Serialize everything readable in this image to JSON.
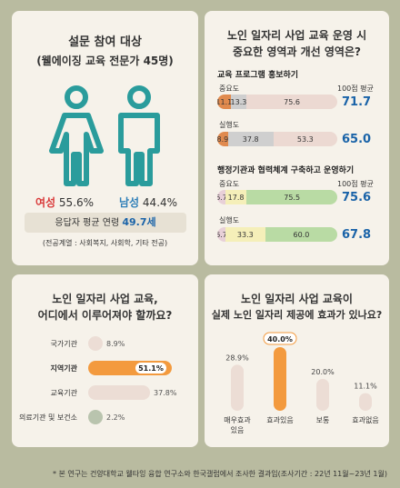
{
  "survey": {
    "title": "설문 참여 대상",
    "subtitle": "(웰에이징 교육 전문가 45명)",
    "female_label": "여성",
    "female_pct": "55.6%",
    "male_label": "남성",
    "male_pct": "44.4%",
    "age_label": "응답자 평균 연령",
    "age_value": "49.7세",
    "majors": "(전공계열 : 사회복지, 사회학, 기타 전공)",
    "colors": {
      "female": "#d93a3a",
      "male": "#2f7fb8",
      "icon": "#2a9c9c"
    }
  },
  "importance": {
    "title_line1": "노인 일자리 사업 교육 운영 시",
    "title_line2": "중요한 영역과 개선 영역은?",
    "avg_header": "100점 평균",
    "sections": [
      {
        "title": "교육 프로그램 홍보하기",
        "rows": [
          {
            "label": "중요도",
            "avg": "71.7"
          },
          {
            "label": "실행도",
            "avg": "65.0"
          }
        ]
      },
      {
        "title": "행정기관과 협력체계 구축하고 운영하기",
        "rows": [
          {
            "label": "중요도",
            "avg": "75.6"
          },
          {
            "label": "실행도",
            "avg": "67.8"
          }
        ]
      }
    ]
  },
  "place": {
    "title_line1": "노인 일자리 사업 교육,",
    "title_line2": "어디에서 이루어져야 할까요?"
  },
  "effect": {
    "title_line1": "노인 일자리 사업 교육이",
    "title_line2": "실제 노인 일자리 제공에 효과가 있나요?"
  },
  "footnote": "* 본 연구는 건양대학교 웰타잉 융합 연구소와 한국갤럽에서 조사한 결과임(조사기간 : 22년 11월~23년 1월)",
  "chart_data": [
    {
      "type": "bar",
      "orientation": "horizontal-stacked",
      "title": "노인 일자리 사업 교육 운영 시 중요한 영역과 개선 영역은?",
      "bars": [
        {
          "group": "교육 프로그램 홍보하기",
          "label": "중요도",
          "segments": [
            11.1,
            13.3,
            75.6
          ],
          "avg": 71.7
        },
        {
          "group": "교육 프로그램 홍보하기",
          "label": "실행도",
          "segments": [
            8.9,
            37.8,
            53.3
          ],
          "avg": 65.0
        },
        {
          "group": "행정기관과 협력체계 구축하고 운영하기",
          "label": "중요도",
          "segments": [
            6.7,
            17.8,
            75.5
          ],
          "avg": 75.6
        },
        {
          "group": "행정기관과 협력체계 구축하고 운영하기",
          "label": "실행도",
          "segments": [
            6.7,
            33.3,
            60.0
          ],
          "avg": 67.8
        }
      ],
      "segment_colors_group1": [
        "#e08a4e",
        "#cfcfcf",
        "#ecd9d2"
      ],
      "segment_colors_group2": [
        "#e8d0d8",
        "#f5efb9",
        "#b9dba4"
      ]
    },
    {
      "type": "bar",
      "orientation": "horizontal",
      "title": "노인 일자리 사업 교육, 어디에서 이루어져야 할까요?",
      "categories": [
        "국가기관",
        "지역기관",
        "교육기관",
        "의료기관 및 보건소"
      ],
      "values": [
        8.9,
        51.1,
        37.8,
        2.2
      ],
      "value_labels": [
        "8.9%",
        "51.1%",
        "37.8%",
        "2.2%"
      ],
      "highlight": "지역기관",
      "colors": {
        "normal": "#ecddd5",
        "highlight": "#f39a3e",
        "small": "#b9c4ae"
      }
    },
    {
      "type": "bar",
      "orientation": "vertical",
      "title": "노인 일자리 사업 교육이 실제 노인 일자리 제공에 효과가 있나요?",
      "categories": [
        "매우효과있음",
        "효과있음",
        "보통",
        "효과없음"
      ],
      "values": [
        28.9,
        40.0,
        20.0,
        11.1
      ],
      "value_labels": [
        "28.9%",
        "40.0%",
        "20.0%",
        "11.1%"
      ],
      "highlight": "효과있음",
      "colors": {
        "normal": "#ecddd5",
        "highlight": "#f39a3e"
      }
    }
  ]
}
